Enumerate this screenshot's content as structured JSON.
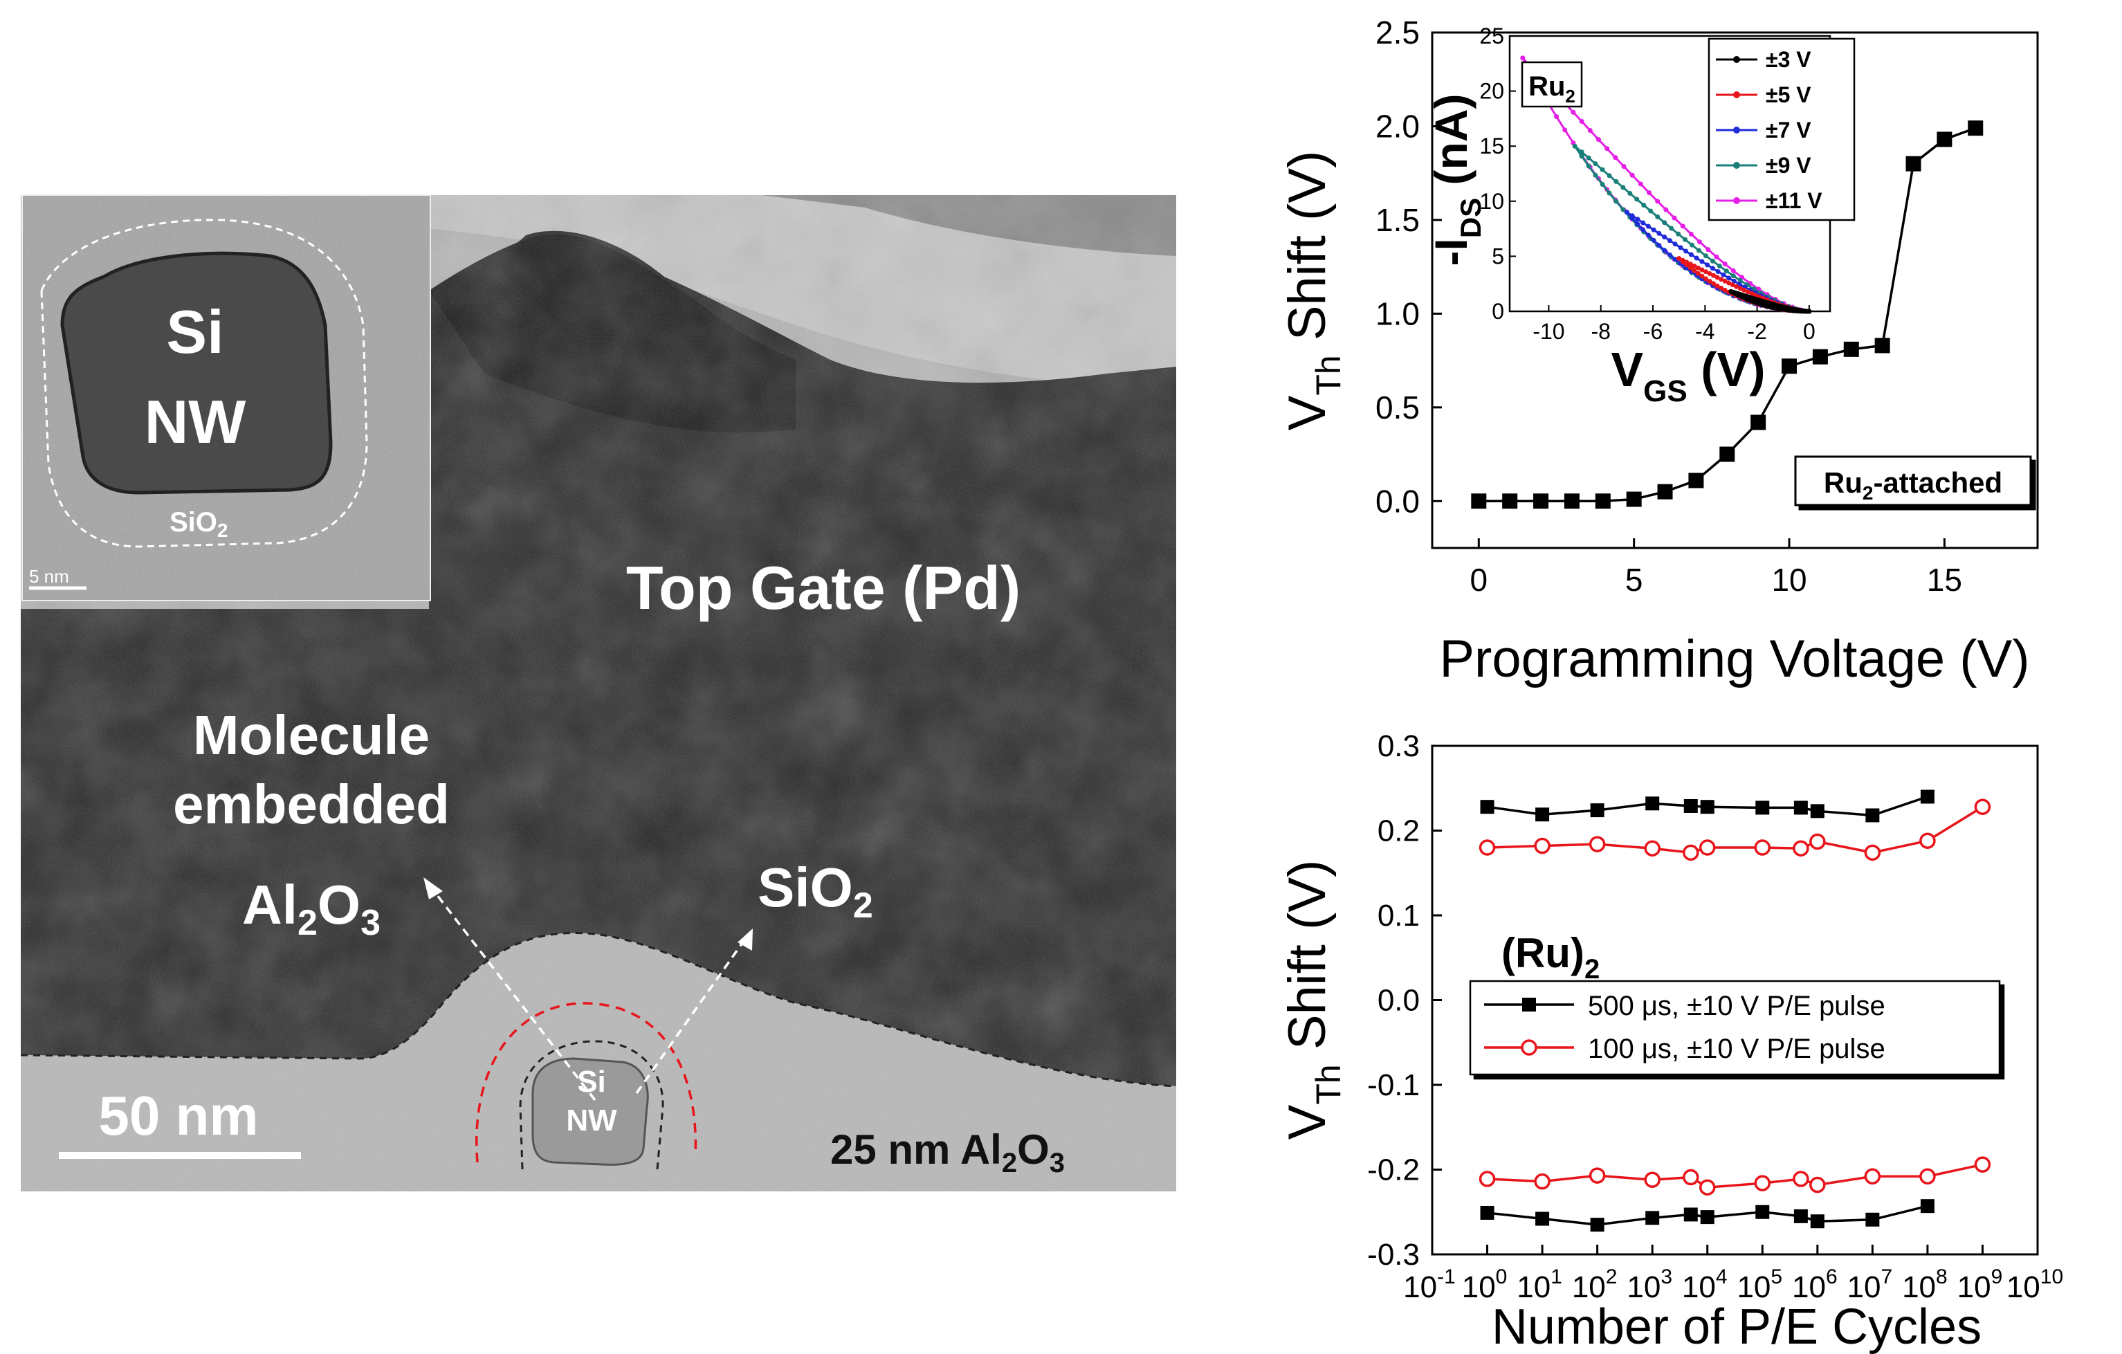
{
  "tem": {
    "inset_label_1": "Si",
    "inset_label_2": "NW",
    "inset_oxide": "SiO",
    "inset_oxide_sub": "2",
    "inset_scale": "5 nm",
    "top_gate": "Top Gate (Pd)",
    "molecule_1": "Molecule",
    "molecule_2": "embedded",
    "molecule_3": "Al",
    "molecule_3_sub": "2",
    "molecule_3b": "O",
    "molecule_3b_sub": "3",
    "sio2": "SiO",
    "sio2_sub": "2",
    "nw_1": "Si",
    "nw_2": "NW",
    "scale": "50 nm",
    "al2o3_prefix": "25 nm Al",
    "al2o3_sub1": "2",
    "al2o3_mid": "O",
    "al2o3_sub2": "3"
  },
  "chart_data": [
    {
      "type": "line",
      "xlabel": "Programming Voltage (V)",
      "ylabel_main": "V",
      "ylabel_sub": "Th",
      "ylabel_rest": " Shift (V)",
      "xlim": [
        -1.5,
        18
      ],
      "ylim": [
        -0.25,
        2.5
      ],
      "xticks": [
        0,
        5,
        10,
        15
      ],
      "yticks": [
        0.0,
        0.5,
        1.0,
        1.5,
        2.0,
        2.5
      ],
      "ytick_labels": [
        "0.0",
        "0.5",
        "1.0",
        "1.5",
        "2.0",
        "2.5"
      ],
      "grid": false,
      "annotation": "Ru",
      "annotation_sub": "2",
      "annotation_rest": "-attached",
      "series": [
        {
          "color": "#000000",
          "marker": "square",
          "x": [
            0,
            1,
            2,
            3,
            4,
            5,
            6,
            7,
            8,
            9,
            10,
            11,
            12,
            13,
            14,
            15,
            16
          ],
          "y": [
            0.0,
            0.0,
            0.0,
            0.0,
            0.0,
            0.01,
            0.05,
            0.11,
            0.25,
            0.42,
            0.72,
            0.77,
            0.81,
            0.83,
            1.8,
            1.93,
            1.99
          ]
        }
      ]
    },
    {
      "type": "line",
      "inset": true,
      "xlabel_main": "V",
      "xlabel_sub": "GS",
      "xlabel_rest": " (V)",
      "ylabel_pre": "-I",
      "ylabel_sub": "DS",
      "ylabel_rest": " (nA)",
      "xlim": [
        -11.5,
        0.8
      ],
      "ylim": [
        0,
        25
      ],
      "xticks": [
        -10,
        -8,
        -6,
        -4,
        -2,
        0
      ],
      "yticks": [
        0,
        5,
        10,
        15,
        20,
        25
      ],
      "title": "Ru",
      "title_sub": "2",
      "legend": [
        "±3 V",
        "±5 V",
        "±7 V",
        "±9 V",
        "±11 V"
      ],
      "legend_placement": "top-right",
      "series": [
        {
          "name": "±3 V",
          "color": "#000000",
          "vmin": -3,
          "imax": 1.8
        },
        {
          "name": "±5 V",
          "color": "#e8151b",
          "vmin": -5,
          "imax": 4.8
        },
        {
          "name": "±7 V",
          "color": "#1f2bd8",
          "vmin": -7,
          "imax": 9.0
        },
        {
          "name": "±9 V",
          "color": "#1a7f78",
          "vmin": -9,
          "imax": 15.0
        },
        {
          "name": "±11 V",
          "color": "#e61fe6",
          "vmin": -11,
          "imax": 23.0
        }
      ]
    },
    {
      "type": "line",
      "xlabel": "Number of P/E Cycles",
      "ylabel_main": "V",
      "ylabel_sub": "Th",
      "ylabel_rest": " Shift (V)",
      "xscale": "log",
      "xlim_exp": [
        -1,
        10
      ],
      "ylim": [
        -0.3,
        0.3
      ],
      "yticks": [
        -0.3,
        -0.2,
        -0.1,
        0.0,
        0.1,
        0.2,
        0.3
      ],
      "ytick_labels": [
        "-0.3",
        "-0.2",
        "-0.1",
        "0.0",
        "0.1",
        "0.2",
        "0.3"
      ],
      "xtick_base": "10",
      "xtick_exps": [
        "-1",
        "0",
        "1",
        "2",
        "3",
        "4",
        "5",
        "6",
        "7",
        "8",
        "9",
        "10"
      ],
      "annotation": "(Ru)",
      "annotation_sub": "2",
      "legend": [
        "500 μs, ±10 V P/E pulse",
        "100 μs, ±10 V P/E pulse"
      ],
      "series": [
        {
          "name": "500 μs, ±10 V P/E pulse",
          "color": "#000000",
          "marker": "square",
          "x": [
            1,
            10,
            100,
            1000,
            5000,
            10000,
            100000,
            500000,
            1000000,
            10000000,
            100000000
          ],
          "y": [
            0.228,
            0.219,
            0.224,
            0.232,
            0.229,
            0.228,
            0.227,
            0.227,
            0.223,
            0.218,
            0.24
          ]
        },
        {
          "name": "500 μs, ±10 V P/E pulse",
          "color": "#000000",
          "marker": "square",
          "x": [
            1,
            10,
            100,
            1000,
            5000,
            10000,
            100000,
            500000,
            1000000,
            10000000,
            100000000
          ],
          "y": [
            -0.251,
            -0.258,
            -0.265,
            -0.257,
            -0.253,
            -0.256,
            -0.25,
            -0.255,
            -0.261,
            -0.259,
            -0.243
          ]
        },
        {
          "name": "100 μs, ±10 V P/E pulse",
          "color": "#e8151b",
          "marker": "circle",
          "x": [
            1,
            10,
            100,
            1000,
            5000,
            10000,
            100000,
            500000,
            1000000,
            10000000,
            100000000,
            1000000000
          ],
          "y": [
            0.18,
            0.182,
            0.184,
            0.179,
            0.174,
            0.18,
            0.18,
            0.179,
            0.187,
            0.174,
            0.188,
            0.228
          ]
        },
        {
          "name": "100 μs, ±10 V P/E pulse",
          "color": "#e8151b",
          "marker": "circle",
          "x": [
            1,
            10,
            100,
            1000,
            5000,
            10000,
            100000,
            500000,
            1000000,
            10000000,
            100000000,
            1000000000
          ],
          "y": [
            -0.211,
            -0.214,
            -0.207,
            -0.212,
            -0.209,
            -0.221,
            -0.216,
            -0.211,
            -0.218,
            -0.208,
            -0.208,
            -0.194
          ]
        }
      ]
    }
  ]
}
